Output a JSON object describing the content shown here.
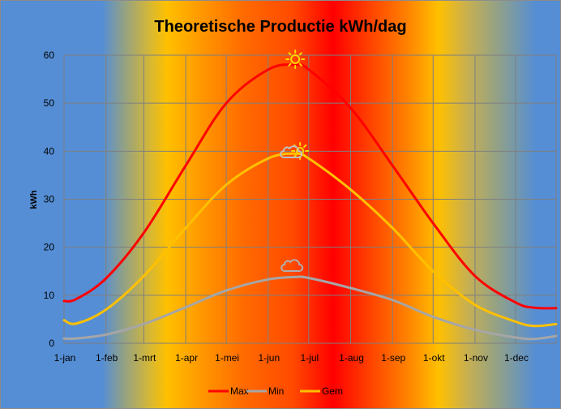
{
  "chart_data": {
    "type": "line",
    "title": "Theoretische Productie kWh/dag",
    "xlabel": "",
    "ylabel": "kWh",
    "ylim": [
      0,
      60
    ],
    "yticks": [
      0,
      10,
      20,
      30,
      40,
      50,
      60
    ],
    "xlim": [
      "2023-01-01",
      "2023-12-31"
    ],
    "xtick_labels": [
      "1-jan",
      "1-feb",
      "1-mrt",
      "1-apr",
      "1-mei",
      "1-jun",
      "1-jul",
      "1-aug",
      "1-sep",
      "1-okt",
      "1-nov",
      "1-dec"
    ],
    "xtick_dates": [
      "2023-01-01",
      "2023-02-01",
      "2023-03-01",
      "2023-04-01",
      "2023-05-01",
      "2023-06-01",
      "2023-07-01",
      "2023-08-01",
      "2023-09-01",
      "2023-10-01",
      "2023-11-01",
      "2023-12-01"
    ],
    "grid": true,
    "legend": "bottom",
    "x": [
      "2023-01-01",
      "2023-01-10",
      "2023-02-01",
      "2023-03-01",
      "2023-04-01",
      "2023-05-01",
      "2023-06-01",
      "2023-06-21",
      "2023-07-01",
      "2023-08-01",
      "2023-09-01",
      "2023-10-01",
      "2023-11-01",
      "2023-12-01",
      "2023-12-15",
      "2023-12-31"
    ],
    "series": [
      {
        "name": "Max",
        "color": "#ff0000",
        "values": [
          8.8,
          9.2,
          13.5,
          23,
          37,
          50,
          57,
          58,
          57,
          49,
          37,
          25,
          14,
          8.5,
          7.4,
          7.3
        ]
      },
      {
        "name": "Min",
        "color": "#a6a6a6",
        "values": [
          1.0,
          1.0,
          1.8,
          4,
          7.5,
          11,
          13.3,
          13.8,
          13.6,
          11.5,
          9,
          5.5,
          2.8,
          1.2,
          0.9,
          1.5
        ]
      },
      {
        "name": "Gem",
        "color": "#ffc000",
        "values": [
          4.8,
          4.1,
          7,
          14,
          24,
          33,
          38.5,
          39.5,
          38.5,
          32,
          24,
          15,
          8,
          4.5,
          3.6,
          4.0
        ]
      }
    ],
    "annotations": [
      {
        "icon": "sun-icon",
        "series": "Max"
      },
      {
        "icon": "sun-cloud-icon",
        "series": "Gem"
      },
      {
        "icon": "cloud-icon",
        "series": "Min"
      }
    ]
  }
}
